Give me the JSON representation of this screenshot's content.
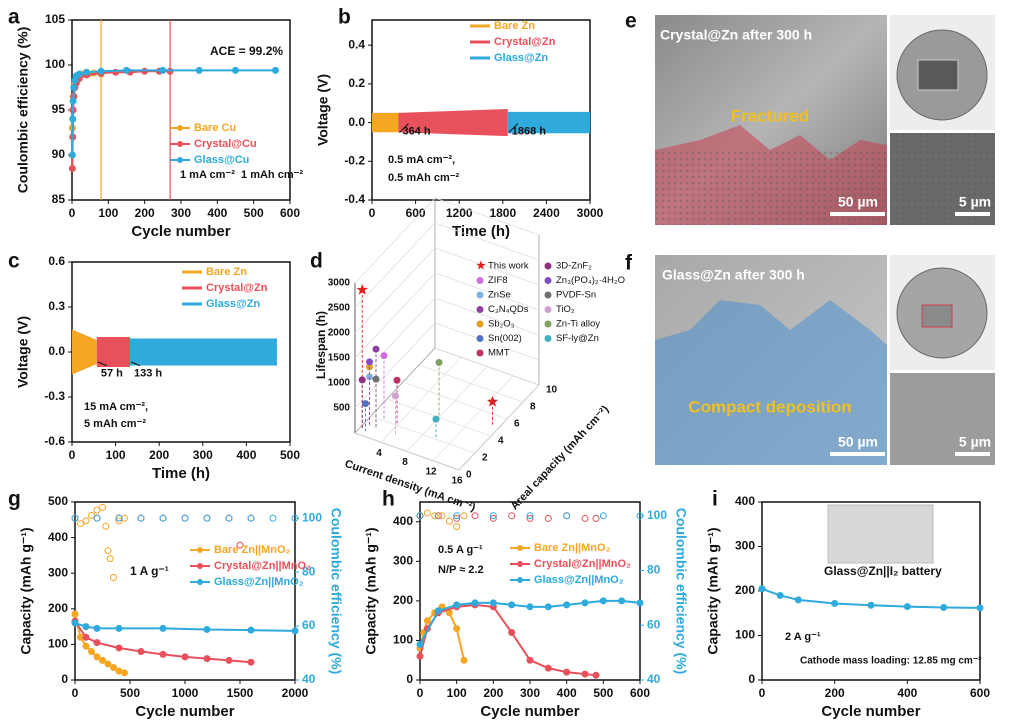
{
  "chart_data": [
    {
      "type": "line",
      "label": "a",
      "xlabel": "Cycle number",
      "ylabel": "Coulombic efficiency (%)",
      "xlim": [
        0,
        600
      ],
      "xticks": [
        0,
        100,
        200,
        300,
        400,
        500,
        600
      ],
      "ylim": [
        85,
        105
      ],
      "yticks": [
        85,
        90,
        95,
        100,
        105
      ],
      "series": [
        {
          "name": "Bare Cu",
          "color": "#f5a623",
          "marker": "filled",
          "x": [
            1,
            2,
            3,
            5,
            8,
            12,
            20,
            30,
            45,
            60,
            80
          ],
          "values": [
            93,
            95,
            96.5,
            97.5,
            98,
            98.5,
            98.8,
            99,
            99,
            99.1,
            99
          ]
        },
        {
          "name": "Crystal@Cu",
          "color": "#e8505b",
          "marker": "filled",
          "x": [
            1,
            2,
            3,
            5,
            8,
            12,
            20,
            40,
            80,
            120,
            160,
            200,
            240,
            270
          ],
          "values": [
            88.5,
            92,
            95,
            96.5,
            97.5,
            98,
            98.5,
            98.9,
            99.1,
            99.2,
            99.2,
            99.3,
            99.3,
            99.3
          ]
        },
        {
          "name": "Glass@Cu",
          "color": "#2eaadc",
          "marker": "filled",
          "x": [
            1,
            2,
            3,
            5,
            8,
            12,
            20,
            40,
            80,
            150,
            250,
            350,
            450,
            560
          ],
          "values": [
            90,
            94,
            96,
            97.5,
            98.3,
            98.8,
            99,
            99.2,
            99.3,
            99.4,
            99.4,
            99.4,
            99.4,
            99.4
          ]
        }
      ],
      "vlines": [
        {
          "x": 80,
          "color": "#f5a623"
        },
        {
          "x": 270,
          "color": "#e8505b"
        }
      ],
      "annotations": [
        {
          "text": "ACE = 99.2%"
        },
        {
          "text": "1 mA cm⁻²  1 mAh cm⁻²"
        }
      ]
    },
    {
      "type": "band",
      "label": "b",
      "xlabel": "Time (h)",
      "ylabel": "Voltage (V)",
      "xlim": [
        0,
        3000
      ],
      "xticks": [
        0,
        600,
        1200,
        1800,
        2400,
        3000
      ],
      "ylim": [
        -0.4,
        0.53
      ],
      "yticks": [
        -0.4,
        -0.2,
        {
          "value": 0,
          "label": "0.0"
        },
        0.2,
        0.4
      ],
      "series": [
        {
          "name": "Bare Zn",
          "color": "#f5a623",
          "x": [
            0,
            364
          ],
          "upper": [
            0.05,
            0.05
          ],
          "lower": [
            -0.05,
            -0.05
          ]
        },
        {
          "name": "Crystal@Zn",
          "color": "#e8505b",
          "x": [
            364,
            1868
          ],
          "upper": [
            0.05,
            0.07
          ],
          "lower": [
            -0.05,
            -0.07
          ]
        },
        {
          "name": "Glass@Zn",
          "color": "#2eaadc",
          "x": [
            1868,
            3000
          ],
          "upper": [
            0.055,
            0.055
          ],
          "lower": [
            -0.055,
            -0.055
          ]
        }
      ],
      "annotations": [
        {
          "text": "364 h",
          "x": 364
        },
        {
          "text": "1868 h",
          "x": 1868
        },
        {
          "text": "0.5 mA cm⁻²,"
        },
        {
          "text": "0.5 mAh cm⁻²"
        }
      ]
    },
    {
      "type": "band",
      "label": "c",
      "xlabel": "Time (h)",
      "ylabel": "Voltage (V)",
      "xlim": [
        0,
        500
      ],
      "xticks": [
        0,
        100,
        200,
        300,
        400,
        500
      ],
      "ylim": [
        -0.6,
        0.6
      ],
      "yticks": [
        -0.6,
        -0.3,
        {
          "value": 0,
          "label": "0.0"
        },
        0.3,
        0.6
      ],
      "series": [
        {
          "name": "Bare Zn",
          "color": "#f5a623",
          "x": [
            0,
            57
          ],
          "upper": [
            0.15,
            0.08
          ],
          "lower": [
            -0.15,
            -0.08
          ]
        },
        {
          "name": "Crystal@Zn",
          "color": "#e8505b",
          "x": [
            57,
            133
          ],
          "upper": [
            0.1,
            0.1
          ],
          "lower": [
            -0.1,
            -0.1
          ]
        },
        {
          "name": "Glass@Zn",
          "color": "#2eaadc",
          "x": [
            133,
            470
          ],
          "upper": [
            0.09,
            0.09
          ],
          "lower": [
            -0.09,
            -0.09
          ]
        }
      ],
      "annotations": [
        {
          "text": "57 h",
          "x": 57
        },
        {
          "text": "133 h",
          "x": 133
        },
        {
          "text": "15 mA cm⁻²,"
        },
        {
          "text": "5 mAh cm⁻²"
        }
      ]
    },
    {
      "type": "scatter3d",
      "label": "d",
      "xlabel": "Current density (mA cm⁻²)",
      "ylabel": "Areal capacity (mAh cm⁻²)",
      "zlabel": "Lifespan (h)",
      "xlim": [
        0,
        16
      ],
      "xticks": [
        4,
        8,
        12,
        16
      ],
      "ylim": [
        0,
        10
      ],
      "yticks": [
        0,
        2,
        4,
        6,
        8,
        10
      ],
      "zlim": [
        0,
        3000
      ],
      "zticks": [
        500,
        1000,
        1500,
        2000,
        2500,
        3000
      ],
      "series": [
        {
          "name": "This work",
          "color": "#e02020",
          "marker": "star",
          "x": [
            0.5,
            15
          ],
          "y": [
            0.5,
            5
          ],
          "z": [
            2800,
            470
          ]
        },
        {
          "name": "ZIF8",
          "color": "#d070e0",
          "marker": "circle",
          "x": [
            2
          ],
          "y": [
            2
          ],
          "z": [
            1300
          ]
        },
        {
          "name": "ZnSe",
          "color": "#7fb0e0",
          "marker": "circle",
          "x": [
            1
          ],
          "y": [
            1
          ],
          "z": [
            1000
          ]
        },
        {
          "name": "C₃N₄QDs",
          "color": "#9040a0",
          "marker": "circle",
          "x": [
            2
          ],
          "y": [
            1
          ],
          "z": [
            1600
          ]
        },
        {
          "name": "Sb₂O₃",
          "color": "#e0a020",
          "marker": "circle",
          "x": [
            1
          ],
          "y": [
            1
          ],
          "z": [
            1200
          ]
        },
        {
          "name": "Sn(002)",
          "color": "#5070c0",
          "marker": "circle",
          "x": [
            1
          ],
          "y": [
            0.5
          ],
          "z": [
            550
          ]
        },
        {
          "name": "MMT",
          "color": "#c03060",
          "marker": "circle",
          "x": [
            4
          ],
          "y": [
            2
          ],
          "z": [
            900
          ]
        },
        {
          "name": "3D-ZnF₂",
          "color": "#903080",
          "marker": "circle",
          "x": [
            0.5
          ],
          "y": [
            0.5
          ],
          "z": [
            1000
          ]
        },
        {
          "name": "Zn₃(PO₄)₂·4H₂O",
          "color": "#8050c0",
          "marker": "circle",
          "x": [
            1
          ],
          "y": [
            1
          ],
          "z": [
            1300
          ]
        },
        {
          "name": "PVDF-Sn",
          "color": "#707070",
          "marker": "circle",
          "x": [
            2
          ],
          "y": [
            1
          ],
          "z": [
            1000
          ]
        },
        {
          "name": "TiO₂",
          "color": "#d0a0d0",
          "marker": "circle",
          "x": [
            5
          ],
          "y": [
            1
          ],
          "z": [
            800
          ]
        },
        {
          "name": "Zn-Ti alloy",
          "color": "#80a060",
          "marker": "circle",
          "x": [
            8
          ],
          "y": [
            4
          ],
          "z": [
            1100
          ]
        },
        {
          "name": "SF-ly@Zn",
          "color": "#40b0c0",
          "marker": "circle",
          "x": [
            10
          ],
          "y": [
            2
          ],
          "z": [
            400
          ]
        }
      ]
    },
    {
      "type": "dual_line",
      "label": "g",
      "xlabel": "Cycle number",
      "ylabel": "Capacity (mAh g⁻¹)",
      "y2label": "Coulombic efficiency (%)",
      "xlim": [
        0,
        2000
      ],
      "xticks": [
        0,
        500,
        1000,
        1500,
        2000
      ],
      "ylim": [
        0,
        500
      ],
      "yticks": [
        0,
        100,
        200,
        300,
        400,
        500
      ],
      "y2lim": [
        40,
        106
      ],
      "y2ticks": [
        40,
        60,
        80,
        100
      ],
      "series": [
        {
          "name": "Bare Zn||MnO₂",
          "color": "#f5a623",
          "marker": "filled",
          "x": [
            0,
            50,
            100,
            150,
            200,
            250,
            300,
            350,
            400,
            450
          ],
          "values": [
            185,
            120,
            95,
            80,
            65,
            55,
            45,
            35,
            25,
            20
          ]
        },
        {
          "name": "Crystal@Zn||MnO₂",
          "color": "#e8505b",
          "marker": "filled",
          "x": [
            0,
            100,
            200,
            400,
            600,
            800,
            1000,
            1200,
            1400,
            1600
          ],
          "values": [
            165,
            120,
            105,
            90,
            80,
            72,
            65,
            60,
            55,
            50
          ]
        },
        {
          "name": "Glass@Zn||MnO₂",
          "color": "#2eaadc",
          "marker": "filled",
          "x": [
            0,
            100,
            200,
            400,
            800,
            1200,
            1600,
            2000
          ],
          "values": [
            160,
            150,
            145,
            145,
            145,
            142,
            140,
            138
          ]
        },
        {
          "color": "#f5a623",
          "marker": "open",
          "axis": "y2",
          "x": [
            0,
            50,
            100,
            150,
            200,
            250,
            280,
            300,
            320,
            350,
            400,
            450
          ],
          "values": [
            100,
            98,
            99,
            101,
            103,
            104,
            97,
            88,
            85,
            78,
            99,
            100
          ]
        },
        {
          "color": "#e8505b",
          "marker": "open",
          "axis": "y2",
          "x": [
            0,
            200,
            400,
            600,
            800,
            1000,
            1200,
            1400,
            1500,
            1600
          ],
          "values": [
            100,
            100,
            100,
            100,
            100,
            100,
            100,
            100,
            90,
            100
          ]
        },
        {
          "color": "#2eaadc",
          "marker": "open",
          "axis": "y2",
          "x": [
            0,
            200,
            400,
            600,
            800,
            1000,
            1200,
            1400,
            1600,
            1800,
            2000
          ],
          "values": [
            100,
            100,
            100,
            100,
            100,
            100,
            100,
            100,
            100,
            100,
            100
          ]
        }
      ],
      "annotations": [
        {
          "text": "1 A g⁻¹"
        }
      ]
    },
    {
      "type": "dual_line",
      "label": "h",
      "xlabel": "Cycle number",
      "ylabel": "Capacity (mAh g⁻¹)",
      "y2label": "Coulombic efficiency (%)",
      "xlim": [
        0,
        600
      ],
      "xticks": [
        0,
        100,
        200,
        300,
        400,
        500,
        600
      ],
      "ylim": [
        0,
        450
      ],
      "yticks": [
        0,
        100,
        200,
        300,
        400
      ],
      "y2lim": [
        40,
        105
      ],
      "y2ticks": [
        40,
        60,
        80,
        100
      ],
      "series": [
        {
          "name": "Bare Zn||MnO₂",
          "color": "#f5a623",
          "marker": "filled",
          "x": [
            0,
            10,
            20,
            40,
            60,
            80,
            100,
            120
          ],
          "values": [
            80,
            120,
            150,
            170,
            185,
            170,
            130,
            50
          ]
        },
        {
          "name": "Crystal@Zn||MnO₂",
          "color": "#e8505b",
          "marker": "filled",
          "x": [
            0,
            20,
            50,
            100,
            150,
            200,
            250,
            300,
            350,
            400,
            450,
            480
          ],
          "values": [
            60,
            130,
            170,
            185,
            190,
            185,
            120,
            50,
            30,
            20,
            15,
            12
          ]
        },
        {
          "name": "Glass@Zn||MnO₂",
          "color": "#2eaadc",
          "marker": "filled",
          "x": [
            0,
            50,
            100,
            150,
            200,
            250,
            300,
            350,
            400,
            450,
            500,
            550,
            600
          ],
          "values": [
            90,
            175,
            190,
            195,
            195,
            190,
            185,
            185,
            190,
            195,
            200,
            200,
            195
          ]
        },
        {
          "color": "#f5a623",
          "marker": "open",
          "axis": "y2",
          "x": [
            0,
            20,
            40,
            60,
            80,
            100,
            120
          ],
          "values": [
            100,
            101,
            100,
            100,
            98,
            96,
            100
          ]
        },
        {
          "color": "#e8505b",
          "marker": "open",
          "axis": "y2",
          "x": [
            0,
            50,
            100,
            150,
            200,
            250,
            300,
            350,
            400,
            450,
            480
          ],
          "values": [
            100,
            100,
            99,
            100,
            99,
            100,
            99,
            99,
            100,
            99,
            99
          ]
        },
        {
          "color": "#2eaadc",
          "marker": "open",
          "axis": "y2",
          "x": [
            0,
            100,
            200,
            300,
            400,
            500,
            600
          ],
          "values": [
            100,
            100,
            100,
            100,
            100,
            100,
            100
          ]
        }
      ],
      "annotations": [
        {
          "text": "0.5 A g⁻¹"
        },
        {
          "text": "N/P ≈ 2.2"
        }
      ]
    },
    {
      "type": "line",
      "label": "i",
      "xlabel": "Cycle number",
      "ylabel": "Capacity (mAh g⁻¹)",
      "xlim": [
        0,
        600
      ],
      "xticks": [
        0,
        200,
        400,
        600
      ],
      "ylim": [
        0,
        400
      ],
      "yticks": [
        0,
        100,
        200,
        300,
        400
      ],
      "series": [
        {
          "color": "#2eaadc",
          "marker": "filled",
          "x": [
            0,
            50,
            100,
            200,
            300,
            400,
            500,
            600
          ],
          "values": [
            205,
            190,
            180,
            172,
            168,
            165,
            163,
            162
          ]
        }
      ],
      "annotations": [
        {
          "text": "Glass@Zn||I₂ battery"
        },
        {
          "text": "2 A g⁻¹"
        },
        {
          "text": "Cathode mass loading: 12.85 mg cm⁻²"
        }
      ]
    }
  ],
  "images": [
    {
      "label": "e",
      "title": "Crystal@Zn after 300 h",
      "caption": "Fractured",
      "scale_main": "50 µm",
      "scale_inset": "5 µm"
    },
    {
      "label": "f",
      "title": "Glass@Zn after 300 h",
      "caption": "Compact deposition",
      "scale_main": "50 µm",
      "scale_inset": "5 µm"
    }
  ]
}
